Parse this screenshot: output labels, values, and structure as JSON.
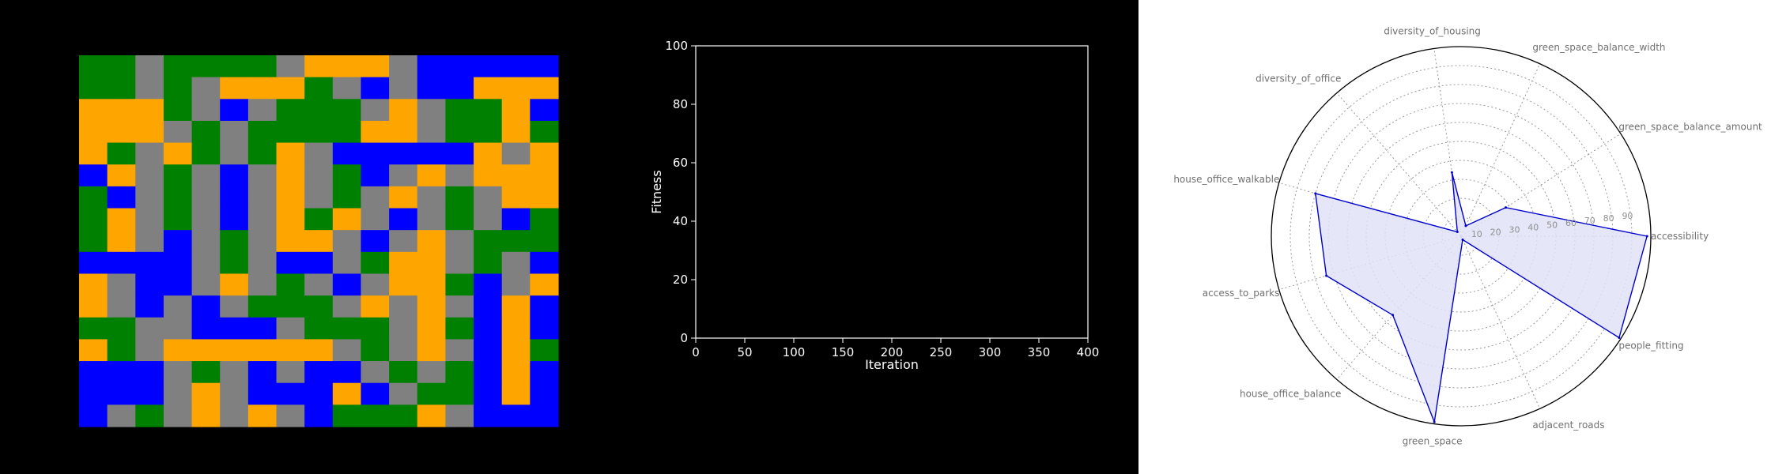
{
  "colors": {
    "road": "#808080",
    "housing": "#ffa500",
    "office": "#0000ff",
    "green": "#008000",
    "radar_line": "#0000cc",
    "radar_fill": "#e2e2f8"
  },
  "grid_map": {
    "rows": [
      "GGRGGGGRHHHRBBBBB",
      "GGRGRHHHGRBRBBHHH",
      "HHHGRBRGGGRHRGGHB",
      "HHHRGRGGGGHHRGGHG",
      "HGRHGRGHRBBBBBHRH",
      "BHRGRBRHRGBRHRHHH",
      "GBRGRBRHRGRHRGRHH",
      "GHRGRBRHGHRBRGRBG",
      "GHRBRGRHHRBRHRGGG",
      "BBBBRGRBBRGHHRGRB",
      "HRBBRHRGRBRHHGBRH",
      "HRBRBRGGGRHRHRBHB",
      "GGRRBBBRGGGRHGBHB",
      "HGRHHHHHHRGRHRBHG",
      "BBBRGRBRBBRGRGBHB",
      "BBBRHRBBBHBRGGBHB",
      "BRGRHRHRBGGGHRBBB"
    ],
    "codes": {
      "G": "green",
      "B": "office",
      "H": "housing",
      "R": "road"
    }
  },
  "chart_data": [
    {
      "type": "line",
      "title": "",
      "xlabel": "Iteration",
      "ylabel": "Fitness",
      "xlim": [
        0,
        400
      ],
      "ylim": [
        0,
        100
      ],
      "x_ticks": [
        0,
        50,
        100,
        150,
        200,
        250,
        300,
        350,
        400
      ],
      "y_ticks": [
        0,
        20,
        40,
        60,
        80,
        100
      ],
      "series": [],
      "grid": false
    },
    {
      "type": "radar",
      "title": "",
      "categories": [
        "accessibility",
        "green_space_balance_amount",
        "green_space_balance_width",
        "diversity_of_housing",
        "diversity_of_office",
        "house_office_walkable",
        "access_to_parks",
        "house_office_balance",
        "green_space",
        "adjacent_roads",
        "people_fitting"
      ],
      "values": [
        98,
        28,
        6,
        34,
        3,
        80,
        74,
        55,
        99,
        2,
        99
      ],
      "r_ticks": [
        10,
        20,
        30,
        40,
        50,
        60,
        70,
        80,
        90
      ],
      "r_tick_labels": [
        "10",
        "20",
        "30",
        "40",
        "50",
        "60",
        "70",
        "80",
        "90"
      ],
      "rlim": [
        0,
        100
      ],
      "grid": true
    }
  ]
}
